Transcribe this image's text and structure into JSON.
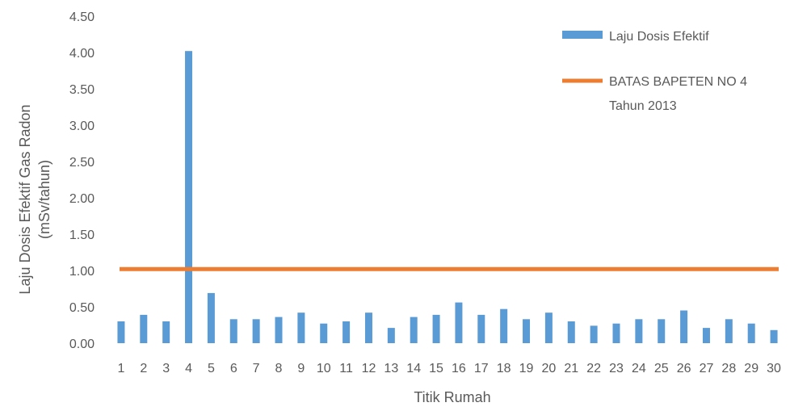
{
  "chart_data": {
    "type": "bar",
    "xlabel": "Titik Rumah",
    "ylabel_line1": "Laju Dosis Efektif Gas Radon",
    "ylabel_line2": "(mSv/tahun)",
    "ylim": [
      0,
      4.5
    ],
    "yticks": [
      "0.00",
      "0.50",
      "1.00",
      "1.50",
      "2.00",
      "2.50",
      "3.00",
      "3.50",
      "4.00",
      "4.50"
    ],
    "categories": [
      "1",
      "2",
      "3",
      "4",
      "5",
      "6",
      "7",
      "8",
      "9",
      "10",
      "11",
      "12",
      "13",
      "14",
      "15",
      "16",
      "17",
      "18",
      "19",
      "20",
      "21",
      "22",
      "23",
      "24",
      "25",
      "26",
      "27",
      "28",
      "29",
      "30"
    ],
    "series": [
      {
        "name": "Laju Dosis  Efektif",
        "type": "bar",
        "color": "#5B9BD5",
        "values": [
          0.3,
          0.39,
          0.3,
          4.02,
          0.69,
          0.33,
          0.33,
          0.36,
          0.42,
          0.27,
          0.3,
          0.42,
          0.21,
          0.36,
          0.39,
          0.56,
          0.39,
          0.47,
          0.33,
          0.42,
          0.3,
          0.24,
          0.27,
          0.33,
          0.33,
          0.45,
          0.21,
          0.33,
          0.27,
          0.18
        ]
      },
      {
        "name_line1": "BATAS BAPETEN NO 4",
        "name_line2": "Tahun 2013",
        "type": "line",
        "color": "#ED7D31",
        "value": 1.02
      }
    ],
    "legend_position": "top-right",
    "grid": false
  }
}
